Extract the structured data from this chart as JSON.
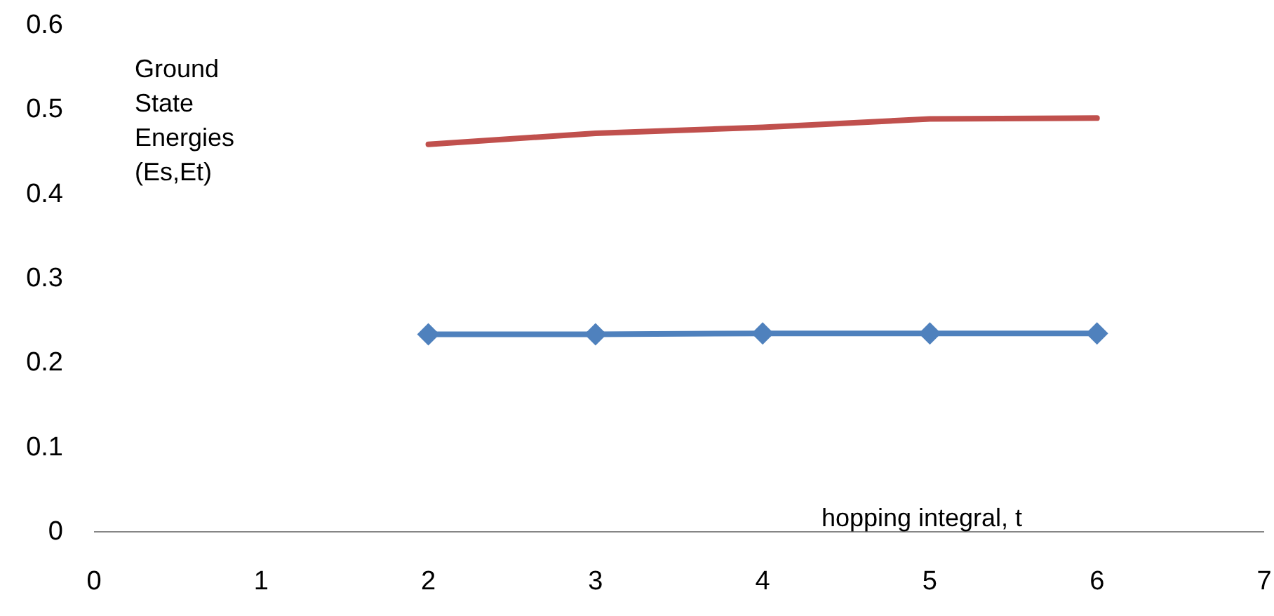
{
  "chart_data": {
    "type": "line",
    "xlabel": "hopping integral, t",
    "ylabel": "Ground State Energies (Es,Et)",
    "x": [
      2,
      3,
      4,
      5,
      6
    ],
    "series": [
      {
        "color": "#4f81bd",
        "values": [
          0.234,
          0.234,
          0.235,
          0.235,
          0.235
        ],
        "marker": "diamond"
      },
      {
        "color": "#c0504d",
        "values": [
          0.459,
          0.472,
          0.479,
          0.489,
          0.49
        ],
        "marker": "none"
      }
    ],
    "xlim": [
      0,
      7
    ],
    "xticks": [
      0,
      1,
      2,
      3,
      4,
      5,
      6,
      7
    ],
    "ylim": [
      0,
      0.6
    ],
    "yticks": [
      0,
      0.1,
      0.2,
      0.3,
      0.4,
      0.5,
      0.6
    ],
    "grid": false
  }
}
